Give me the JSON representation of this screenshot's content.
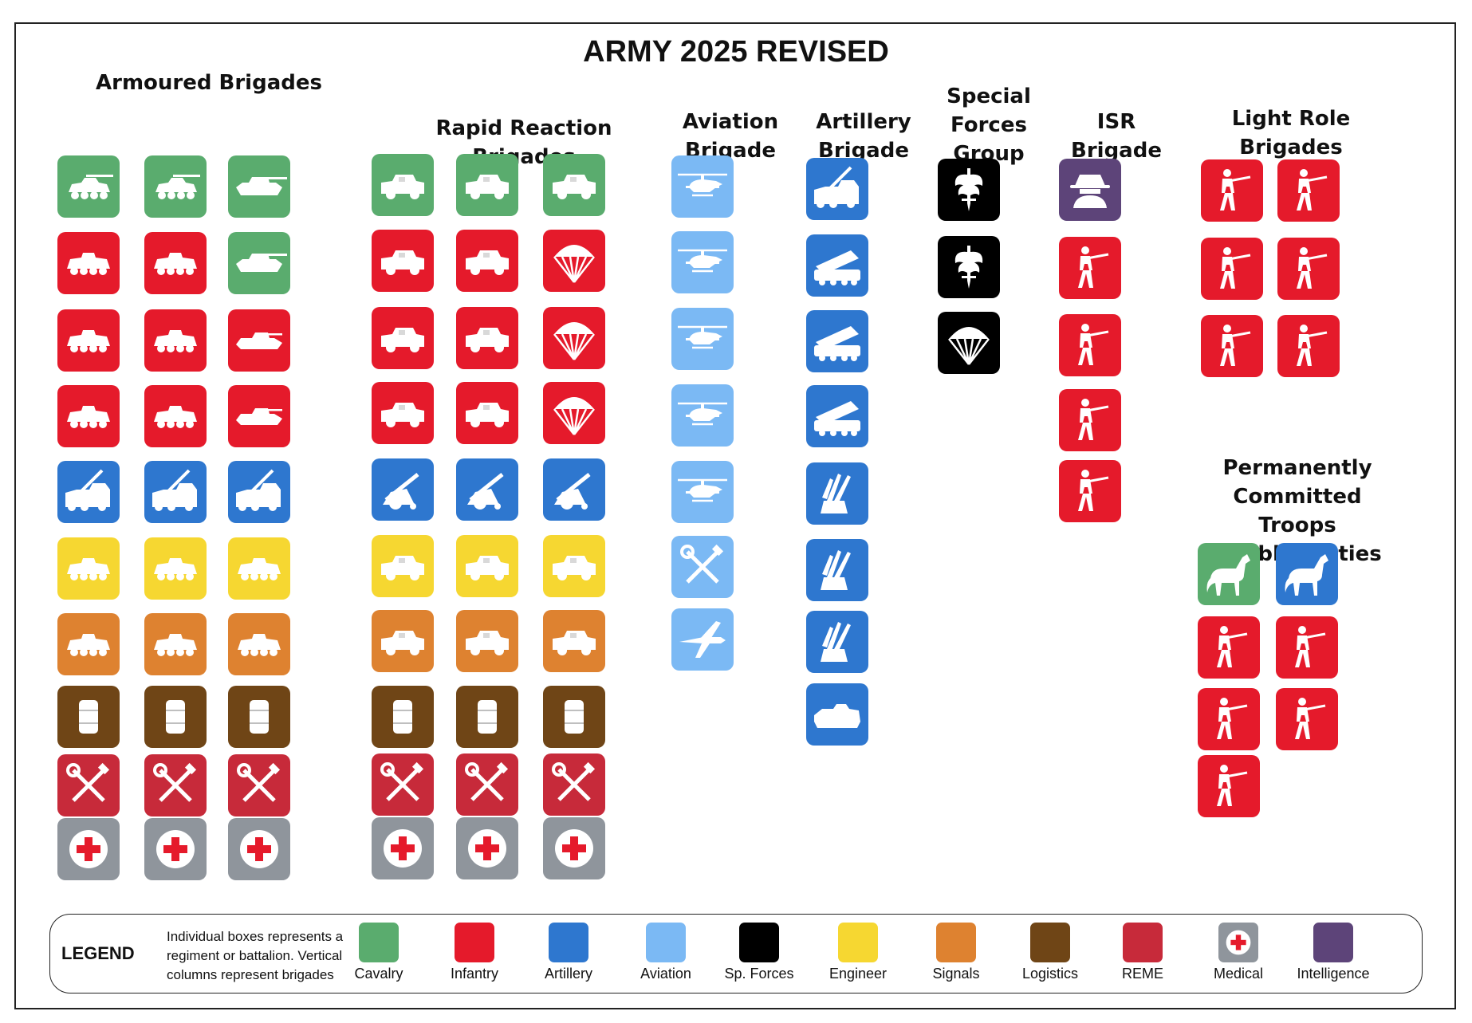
{
  "title": "ARMY 2025 REVISED",
  "colors": {
    "Cavalry": "#5aac6e",
    "Infantry": "#e51a2b",
    "Artillery": "#2e77cf",
    "Aviation": "#7bb9f4",
    "Sp. Forces": "#000000",
    "Engineer": "#f6d731",
    "Signals": "#de8230",
    "Logistics": "#6f4516",
    "REME": "#c72a3a",
    "Medical": "#8f959c",
    "Intelligence": "#5d4479"
  },
  "groups": [
    {
      "title": "Armoured Brigades",
      "columns": [
        [
          {
            "type": "Cavalry",
            "icon": "armoured-car-icon"
          },
          {
            "type": "Infantry",
            "icon": "apc-icon"
          },
          {
            "type": "Infantry",
            "icon": "apc-icon"
          },
          {
            "type": "Infantry",
            "icon": "apc-icon"
          },
          {
            "type": "Artillery",
            "icon": "self-propelled-gun-icon"
          },
          {
            "type": "Engineer",
            "icon": "apc-icon"
          },
          {
            "type": "Signals",
            "icon": "apc-icon"
          },
          {
            "type": "Logistics",
            "icon": "fuel-barrel-icon"
          },
          {
            "type": "REME",
            "icon": "tools-icon"
          },
          {
            "type": "Medical",
            "icon": "red-cross-icon"
          }
        ],
        [
          {
            "type": "Cavalry",
            "icon": "armoured-car-icon"
          },
          {
            "type": "Infantry",
            "icon": "apc-icon"
          },
          {
            "type": "Infantry",
            "icon": "apc-icon"
          },
          {
            "type": "Infantry",
            "icon": "apc-icon"
          },
          {
            "type": "Artillery",
            "icon": "self-propelled-gun-icon"
          },
          {
            "type": "Engineer",
            "icon": "apc-icon"
          },
          {
            "type": "Signals",
            "icon": "apc-icon"
          },
          {
            "type": "Logistics",
            "icon": "fuel-barrel-icon"
          },
          {
            "type": "REME",
            "icon": "tools-icon"
          },
          {
            "type": "Medical",
            "icon": "red-cross-icon"
          }
        ],
        [
          {
            "type": "Cavalry",
            "icon": "tank-icon"
          },
          {
            "type": "Cavalry",
            "icon": "tank-icon"
          },
          {
            "type": "Infantry",
            "icon": "ifv-icon"
          },
          {
            "type": "Infantry",
            "icon": "ifv-icon"
          },
          {
            "type": "Artillery",
            "icon": "self-propelled-gun-icon"
          },
          {
            "type": "Engineer",
            "icon": "apc-icon"
          },
          {
            "type": "Signals",
            "icon": "apc-icon"
          },
          {
            "type": "Logistics",
            "icon": "fuel-barrel-icon"
          },
          {
            "type": "REME",
            "icon": "tools-icon"
          },
          {
            "type": "Medical",
            "icon": "red-cross-icon"
          }
        ]
      ]
    },
    {
      "title": "Rapid Reaction\nBrigades",
      "columns": [
        [
          {
            "type": "Cavalry",
            "icon": "jeep-icon"
          },
          {
            "type": "Infantry",
            "icon": "jeep-icon"
          },
          {
            "type": "Infantry",
            "icon": "jeep-icon"
          },
          {
            "type": "Infantry",
            "icon": "jeep-icon"
          },
          {
            "type": "Artillery",
            "icon": "towed-howitzer-icon"
          },
          {
            "type": "Engineer",
            "icon": "jeep-icon"
          },
          {
            "type": "Signals",
            "icon": "jeep-icon"
          },
          {
            "type": "Logistics",
            "icon": "fuel-barrel-icon"
          },
          {
            "type": "REME",
            "icon": "tools-icon"
          },
          {
            "type": "Medical",
            "icon": "red-cross-icon"
          }
        ],
        [
          {
            "type": "Cavalry",
            "icon": "jeep-icon"
          },
          {
            "type": "Infantry",
            "icon": "jeep-icon"
          },
          {
            "type": "Infantry",
            "icon": "jeep-icon"
          },
          {
            "type": "Infantry",
            "icon": "jeep-icon"
          },
          {
            "type": "Artillery",
            "icon": "towed-howitzer-icon"
          },
          {
            "type": "Engineer",
            "icon": "jeep-icon"
          },
          {
            "type": "Signals",
            "icon": "jeep-icon"
          },
          {
            "type": "Logistics",
            "icon": "fuel-barrel-icon"
          },
          {
            "type": "REME",
            "icon": "tools-icon"
          },
          {
            "type": "Medical",
            "icon": "red-cross-icon"
          }
        ],
        [
          {
            "type": "Cavalry",
            "icon": "jeep-icon"
          },
          {
            "type": "Infantry",
            "icon": "parachute-icon"
          },
          {
            "type": "Infantry",
            "icon": "parachute-icon"
          },
          {
            "type": "Infantry",
            "icon": "parachute-icon"
          },
          {
            "type": "Artillery",
            "icon": "towed-howitzer-icon"
          },
          {
            "type": "Engineer",
            "icon": "jeep-icon"
          },
          {
            "type": "Signals",
            "icon": "jeep-icon"
          },
          {
            "type": "Logistics",
            "icon": "fuel-barrel-icon"
          },
          {
            "type": "REME",
            "icon": "tools-icon"
          },
          {
            "type": "Medical",
            "icon": "red-cross-icon"
          }
        ]
      ]
    },
    {
      "title": "Aviation\nBrigade",
      "columns": [
        [
          {
            "type": "Aviation",
            "icon": "helicopter-icon"
          },
          {
            "type": "Aviation",
            "icon": "helicopter-icon"
          },
          {
            "type": "Aviation",
            "icon": "helicopter-icon"
          },
          {
            "type": "Aviation",
            "icon": "helicopter-icon"
          },
          {
            "type": "Aviation",
            "icon": "helicopter-icon"
          },
          {
            "type": "Aviation",
            "icon": "tools-icon"
          },
          {
            "type": "Aviation",
            "icon": "drone-icon"
          }
        ]
      ]
    },
    {
      "title": "Artillery\nBrigade",
      "columns": [
        [
          {
            "type": "Artillery",
            "icon": "self-propelled-gun-icon"
          },
          {
            "type": "Artillery",
            "icon": "rocket-launcher-icon"
          },
          {
            "type": "Artillery",
            "icon": "rocket-launcher-icon"
          },
          {
            "type": "Artillery",
            "icon": "rocket-launcher-icon"
          },
          {
            "type": "Artillery",
            "icon": "air-defence-missile-icon"
          },
          {
            "type": "Artillery",
            "icon": "air-defence-missile-icon"
          },
          {
            "type": "Artillery",
            "icon": "air-defence-missile-icon"
          },
          {
            "type": "Artillery",
            "icon": "radar-vehicle-icon"
          }
        ]
      ]
    },
    {
      "title": "Special\nForces\nGroup",
      "columns": [
        [
          {
            "type": "Sp. Forces",
            "icon": "winged-dagger-icon"
          },
          {
            "type": "Sp. Forces",
            "icon": "winged-dagger-icon"
          },
          {
            "type": "Sp. Forces",
            "icon": "parachute-icon"
          }
        ]
      ]
    },
    {
      "title": "ISR\nBrigade",
      "columns": [
        [
          {
            "type": "Intelligence",
            "icon": "spy-icon"
          },
          {
            "type": "Infantry",
            "icon": "rifleman-icon"
          },
          {
            "type": "Infantry",
            "icon": "rifleman-icon"
          },
          {
            "type": "Infantry",
            "icon": "rifleman-icon"
          },
          {
            "type": "Infantry",
            "icon": "rifleman-icon"
          }
        ]
      ]
    },
    {
      "title": "Light Role\nBrigades",
      "columns": [
        [
          {
            "type": "Infantry",
            "icon": "rifleman-icon"
          },
          {
            "type": "Infantry",
            "icon": "rifleman-icon"
          },
          {
            "type": "Infantry",
            "icon": "rifleman-icon"
          }
        ],
        [
          {
            "type": "Infantry",
            "icon": "rifleman-icon"
          },
          {
            "type": "Infantry",
            "icon": "rifleman-icon"
          },
          {
            "type": "Infantry",
            "icon": "rifleman-icon"
          }
        ]
      ]
    },
    {
      "title": "Permanently\nCommitted Troops\n/ Public Duties",
      "columns": [
        [
          {
            "type": "Cavalry",
            "icon": "horse-icon"
          },
          {
            "type": "Infantry",
            "icon": "rifleman-icon"
          },
          {
            "type": "Infantry",
            "icon": "rifleman-icon"
          },
          {
            "type": "Infantry",
            "icon": "rifleman-icon"
          }
        ],
        [
          {
            "type": "Artillery",
            "icon": "horse-icon"
          },
          {
            "type": "Infantry",
            "icon": "rifleman-icon"
          },
          {
            "type": "Infantry",
            "icon": "rifleman-icon"
          }
        ]
      ]
    }
  ],
  "legend": {
    "title": "LEGEND",
    "note": "Individual boxes represents a regiment or battalion. Vertical columns represent brigades",
    "items": [
      "Cavalry",
      "Infantry",
      "Artillery",
      "Aviation",
      "Sp. Forces",
      "Engineer",
      "Signals",
      "Logistics",
      "REME",
      "Medical",
      "Intelligence"
    ]
  }
}
